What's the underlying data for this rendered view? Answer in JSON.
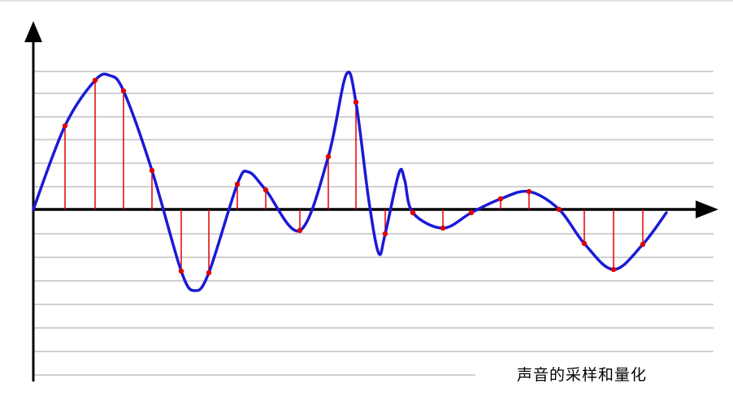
{
  "caption": "声音的采样和量化",
  "colors": {
    "waveform": "#1a1ad6",
    "sample_line": "#e00000",
    "sample_dot": "#e00000",
    "grid": "#a0a0a0",
    "axis": "#000000"
  },
  "quantization": {
    "levels_above_axis": 6,
    "levels_below_axis": 7
  },
  "samples": {
    "count": 22
  }
}
